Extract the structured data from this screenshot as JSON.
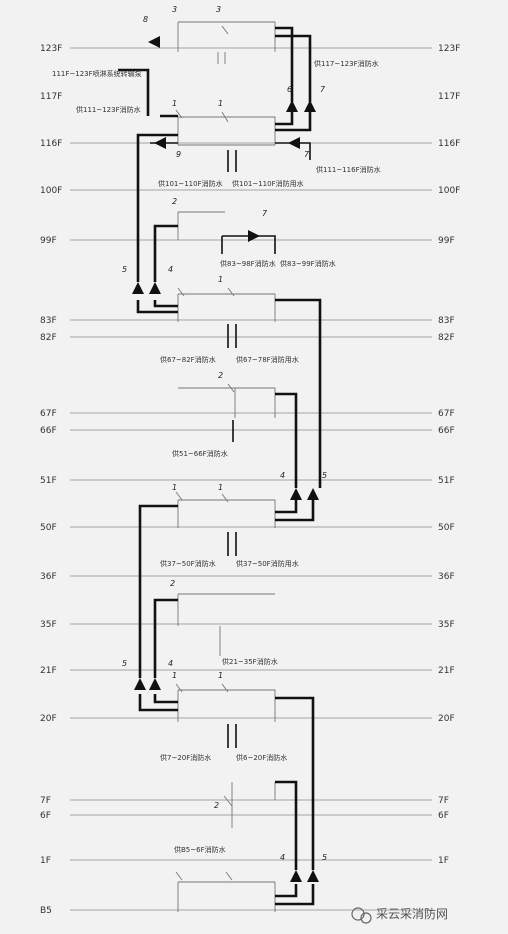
{
  "floors": [
    {
      "left": "123F",
      "right": "123F"
    },
    {
      "left": "117F",
      "right": "117F"
    },
    {
      "left": "116F",
      "right": "116F"
    },
    {
      "left": "100F",
      "right": "100F"
    },
    {
      "left": "99F",
      "right": "99F"
    },
    {
      "left": "83F",
      "right": "83F"
    },
    {
      "left": "82F",
      "right": "82F"
    },
    {
      "left": "67F",
      "right": "67F"
    },
    {
      "left": "66F",
      "right": "66F"
    },
    {
      "left": "51F",
      "right": "51F"
    },
    {
      "left": "50F",
      "right": "50F"
    },
    {
      "left": "36F",
      "right": "36F"
    },
    {
      "left": "35F",
      "right": "35F"
    },
    {
      "left": "21F",
      "right": "21F"
    },
    {
      "left": "20F",
      "right": "20F"
    },
    {
      "left": "7F",
      "right": "7F"
    },
    {
      "left": "6F",
      "right": "6F"
    },
    {
      "left": "1F",
      "right": "1F"
    },
    {
      "left": "B5",
      "right": ""
    }
  ],
  "notes": [
    "111F~123F喷淋系统转输泵",
    "供111~123F消防水",
    "供117~123F消防水",
    "供101~110F消防水",
    "供101~110F消防用水",
    "供111~116F消防水",
    "供83~98F消防水",
    "供83~99F消防水",
    "供67~82F消防水",
    "供67~78F消防用水",
    "供51~66F消防水",
    "供37~50F消防水",
    "供37~50F消防用水",
    "供21~35F消防水",
    "供7~20F消防水",
    "供6~20F消防水",
    "供B5~6F消防水"
  ],
  "numbers": [
    "1",
    "2",
    "3",
    "4",
    "5",
    "6",
    "7",
    "8",
    "9"
  ],
  "watermark": "采云采消防网"
}
